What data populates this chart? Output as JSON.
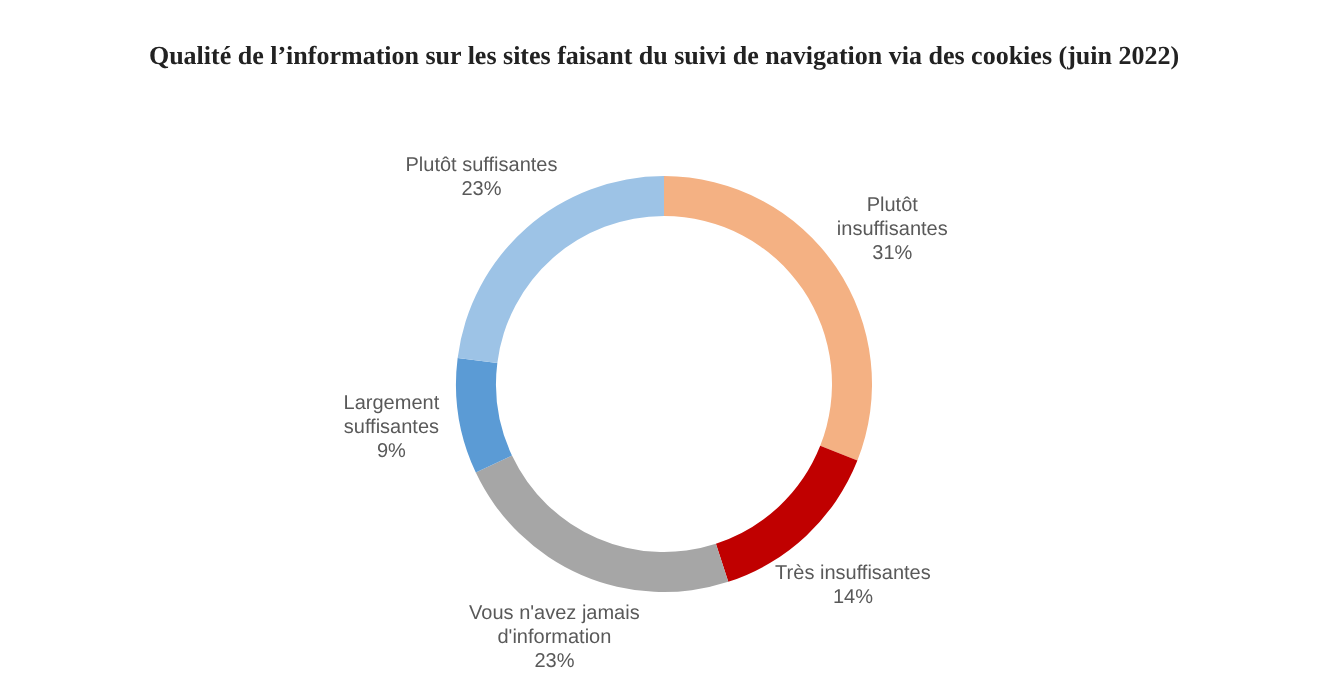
{
  "chart_data": {
    "type": "donut",
    "title": "Qualité de l’information sur les sites faisant du suivi de navigation via des cookies (juin 2022)",
    "categories": [
      "Plutôt insuffisantes",
      "Très insuffisantes",
      "Vous n'avez jamais d'information",
      "Largement suffisantes",
      "Plutôt suffisantes"
    ],
    "values": [
      31,
      14,
      23,
      9,
      23
    ],
    "colors": [
      "#f4b183",
      "#c00000",
      "#a6a6a6",
      "#5b9bd5",
      "#9dc3e6"
    ],
    "value_labels": [
      "31%",
      "14%",
      "23%",
      "9%",
      "23%"
    ],
    "legend": false
  }
}
